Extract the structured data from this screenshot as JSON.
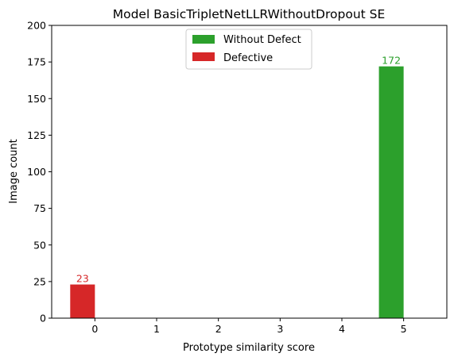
{
  "chart_data": {
    "type": "bar",
    "title": "Model BasicTripletNetLLRWithoutDropout SE",
    "xlabel": "Prototype similarity score",
    "ylabel": "Image count",
    "x_ticks": [
      "0",
      "1",
      "2",
      "3",
      "4",
      "5"
    ],
    "y_ticks": [
      "0",
      "25",
      "50",
      "75",
      "100",
      "125",
      "150",
      "175",
      "200"
    ],
    "xlim": [
      -0.7,
      5.7
    ],
    "ylim": [
      0,
      200
    ],
    "grid": false,
    "legend_position": "top-center",
    "series": [
      {
        "name": "Without Defect",
        "color": "#2ca02c",
        "points": [
          {
            "x": 5,
            "y": 172,
            "label": "172"
          }
        ]
      },
      {
        "name": "Defective",
        "color": "#d62728",
        "points": [
          {
            "x": 0,
            "y": 23,
            "label": "23"
          }
        ]
      }
    ]
  }
}
